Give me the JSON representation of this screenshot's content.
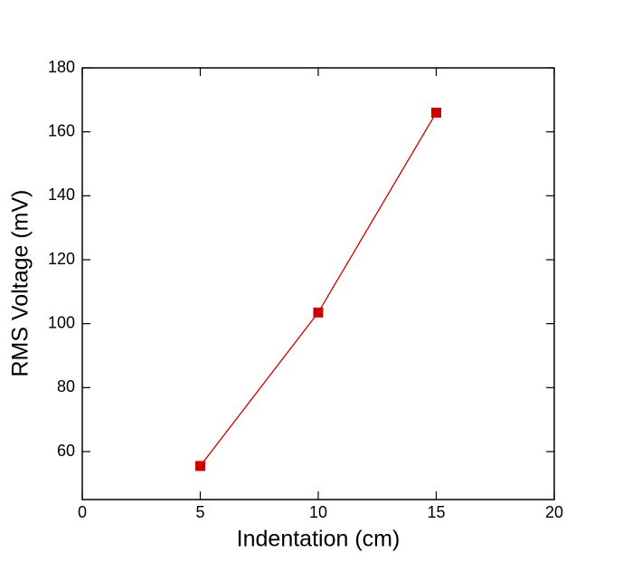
{
  "chart_data": {
    "type": "line",
    "x": [
      5,
      10,
      15
    ],
    "series": [
      {
        "color": "#cc0000",
        "values": [
          55.5,
          103.5,
          166
        ]
      }
    ],
    "x_label": "Indentation (cm)",
    "y_label": "RMS Voltage (mV)",
    "xlim": [
      0,
      20
    ],
    "xticks": [
      0,
      5,
      10,
      15,
      20
    ],
    "ylim": [
      45,
      180
    ],
    "yticks": [
      60,
      80,
      100,
      120,
      140,
      160,
      180
    ],
    "grid": false
  }
}
